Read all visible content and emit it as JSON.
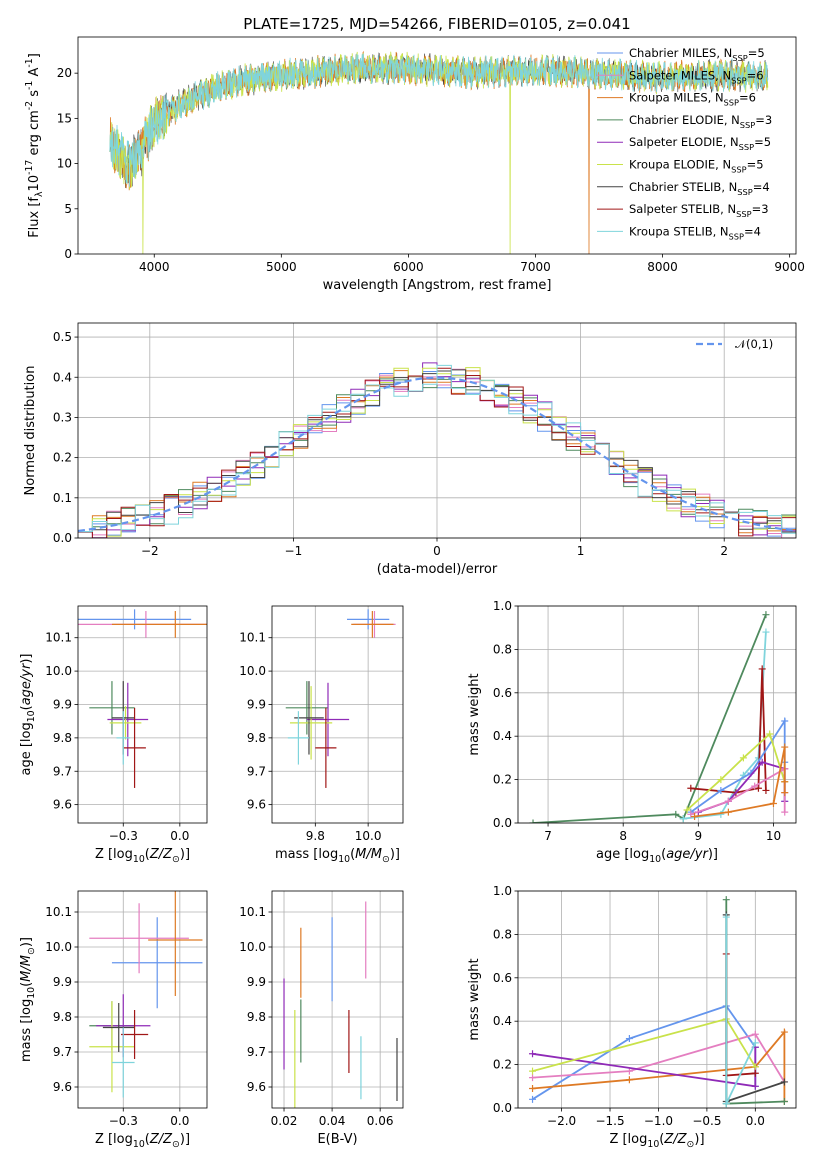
{
  "figure": {
    "title": "PLATE=1725, MJD=54266, FIBERID=0105, z=0.041"
  },
  "model_labels": {
    "chabrier_miles": "Chabrier MILES, N$_{SSP}$=5",
    "salpeter_miles": "Salpeter MILES, N$_{SSP}$=6",
    "kroupa_miles": "Kroupa MILES, N$_{SSP}$=6",
    "chabrier_elodie": "Chabrier ELODIE, N$_{SSP}$=3",
    "salpeter_elodie": "Salpeter ELODIE, N$_{SSP}$=5",
    "kroupa_elodie": "Kroupa ELODIE, N$_{SSP}$=5",
    "chabrier_stelib": "Chabrier STELIB, N$_{SSP}$=4",
    "salpeter_stelib": "Salpeter STELIB, N$_{SSP}$=3",
    "kroupa_stelib": "Kroupa STELIB, N$_{SSP}$=4"
  },
  "colors": {
    "chabrier_miles": "#6495ed",
    "salpeter_miles": "#e47ec0",
    "kroupa_miles": "#de7a25",
    "chabrier_elodie": "#4f8a5e",
    "salpeter_elodie": "#8f2ab7",
    "kroupa_elodie": "#c9e24a",
    "chabrier_stelib": "#444444",
    "salpeter_stelib": "#a01717",
    "kroupa_stelib": "#7fd4dc",
    "normal": "#6495ed"
  },
  "chart_data": [
    {
      "id": "spectrum",
      "type": "line",
      "title": "PLATE=1725, MJD=54266, FIBERID=0105, z=0.041",
      "xlabel": "wavelength [Angstrom, rest frame]",
      "ylabel": "Flux [f$_\\lambda$10$^{-17}$ erg cm$^{-2}$ s$^{-1}$ A$^{-1}$]",
      "xlim": [
        3400,
        9050
      ],
      "ylim": [
        0,
        24
      ],
      "xticks": [
        4000,
        5000,
        6000,
        7000,
        8000,
        9000
      ],
      "yticks": [
        0,
        5,
        10,
        15,
        20
      ],
      "legend": "right",
      "data_range": [
        3650,
        8830
      ],
      "series": [
        {
          "key": "chabrier_stelib",
          "name": "Chabrier STELIB, N$_{SSP}$=4"
        },
        {
          "key": "kroupa_miles",
          "name": "Kroupa MILES, N$_{SSP}$=6",
          "drops": [
            [
              7420,
              0
            ]
          ]
        },
        {
          "key": "kroupa_elodie",
          "name": "Kroupa ELODIE, N$_{SSP}$=5",
          "drops": [
            [
              3910,
              0
            ],
            [
              6800,
              0
            ]
          ]
        },
        {
          "key": "kroupa_stelib",
          "name": "Kroupa STELIB, N$_{SSP}$=4"
        }
      ],
      "continuum": [
        [
          3650,
          12.5
        ],
        [
          3800,
          9.5
        ],
        [
          3900,
          11.5
        ],
        [
          4000,
          14.5
        ],
        [
          4200,
          16.5
        ],
        [
          4500,
          18.5
        ],
        [
          4800,
          19.5
        ],
        [
          5200,
          20
        ],
        [
          5600,
          20.5
        ],
        [
          6000,
          20.5
        ],
        [
          6500,
          20
        ],
        [
          7000,
          20.3
        ],
        [
          7500,
          20
        ],
        [
          8000,
          19.5
        ],
        [
          8500,
          19.8
        ],
        [
          8830,
          19.6
        ]
      ]
    },
    {
      "id": "residuals",
      "type": "bar",
      "xlabel": "(data-model)/error",
      "ylabel": "Normed distribution",
      "xlim": [
        -2.5,
        2.5
      ],
      "ylim": [
        0,
        0.535
      ],
      "xticks": [
        -2,
        -1,
        0,
        1,
        2
      ],
      "yticks": [
        0.0,
        0.1,
        0.2,
        0.3,
        0.4,
        0.5
      ],
      "grid": true,
      "legend": "top-right",
      "legend_label": "$\\mathcal{N}(0,1)$",
      "series": [
        {
          "key": "normal",
          "name": "$\\mathcal{N}(0,1)$",
          "values": "gaussian(0,1)"
        }
      ],
      "hist_bins": [
        -2.5,
        2.5,
        0.1
      ]
    },
    {
      "id": "age_vs_Z",
      "type": "scatter",
      "xlabel": "Z [log$_{10}$($Z/Z_\\odot$)]",
      "ylabel": "age  [log$_{10}$($age/yr$)]",
      "xlim": [
        -0.45,
        0.12
      ],
      "ylim": [
        9.545,
        10.195
      ],
      "xticks": [
        -0.25,
        0.0
      ],
      "yticks": [
        9.6,
        9.7,
        9.8,
        9.9,
        10.0,
        10.1
      ],
      "grid": true,
      "errorbars": [
        {
          "key": "chabrier_miles",
          "x": -0.2,
          "xerr": 0.25,
          "y": 10.155,
          "yerr": 0.03
        },
        {
          "key": "salpeter_miles",
          "x": -0.15,
          "xerr": 0.35,
          "y": 10.14,
          "yerr": 0.04
        },
        {
          "key": "kroupa_miles",
          "x": -0.02,
          "xerr": 0.28,
          "y": 10.14,
          "yerr": 0.04
        },
        {
          "key": "chabrier_elodie",
          "x": -0.3,
          "xerr": 0.1,
          "y": 9.89,
          "yerr": 0.08
        },
        {
          "key": "salpeter_elodie",
          "x": -0.23,
          "xerr": 0.09,
          "y": 9.855,
          "yerr": 0.11
        },
        {
          "key": "kroupa_elodie",
          "x": -0.24,
          "xerr": 0.07,
          "y": 9.845,
          "yerr": 0.05
        },
        {
          "key": "chabrier_stelib",
          "x": -0.25,
          "xerr": 0.05,
          "y": 9.86,
          "yerr": 0.11
        },
        {
          "key": "salpeter_stelib",
          "x": -0.2,
          "xerr": 0.05,
          "y": 9.77,
          "yerr": 0.12
        },
        {
          "key": "kroupa_stelib",
          "x": -0.25,
          "xerr": 0.03,
          "y": 9.8,
          "yerr": 0.08
        }
      ]
    },
    {
      "id": "age_vs_mass",
      "type": "scatter",
      "xlabel": "mass [log$_{10}$($M/M_\\odot$)]",
      "ylabel": "",
      "xlim": [
        9.545,
        10.165
      ],
      "ylim": [
        9.545,
        10.195
      ],
      "xticks": [
        9.75,
        10.0
      ],
      "yticks": [
        9.6,
        9.7,
        9.8,
        9.9,
        10.0,
        10.1
      ],
      "grid": true,
      "errorbars": [
        {
          "key": "chabrier_miles",
          "x": 10.0,
          "xerr": 0.1,
          "y": 10.155,
          "yerr": 0.03
        },
        {
          "key": "salpeter_miles",
          "x": 10.03,
          "xerr": 0.1,
          "y": 10.14,
          "yerr": 0.04
        },
        {
          "key": "kroupa_miles",
          "x": 10.02,
          "xerr": 0.1,
          "y": 10.14,
          "yerr": 0.04
        },
        {
          "key": "chabrier_elodie",
          "x": 9.71,
          "xerr": 0.1,
          "y": 9.89,
          "yerr": 0.08
        },
        {
          "key": "salpeter_elodie",
          "x": 9.81,
          "xerr": 0.1,
          "y": 9.855,
          "yerr": 0.11
        },
        {
          "key": "kroupa_elodie",
          "x": 9.73,
          "xerr": 0.1,
          "y": 9.845,
          "yerr": 0.11
        },
        {
          "key": "chabrier_stelib",
          "x": 9.72,
          "xerr": 0.07,
          "y": 9.86,
          "yerr": 0.11
        },
        {
          "key": "salpeter_stelib",
          "x": 9.8,
          "xerr": 0.05,
          "y": 9.77,
          "yerr": 0.12
        },
        {
          "key": "kroupa_stelib",
          "x": 9.67,
          "xerr": 0.05,
          "y": 9.8,
          "yerr": 0.08
        }
      ]
    },
    {
      "id": "weight_vs_age",
      "type": "line",
      "xlabel": "age  [log$_{10}$($age/yr$)]",
      "ylabel": "mass weight",
      "xlim": [
        6.6,
        10.3
      ],
      "ylim": [
        0,
        1.0
      ],
      "xticks": [
        7,
        8,
        9,
        10
      ],
      "yticks": [
        0.0,
        0.2,
        0.4,
        0.6,
        0.8,
        1.0
      ],
      "grid": true,
      "series": [
        {
          "key": "chabrier_elodie",
          "x": [
            6.8,
            8.7,
            8.8,
            9.9
          ],
          "y": [
            0.0,
            0.04,
            0.02,
            0.96
          ]
        },
        {
          "key": "kroupa_stelib",
          "x": [
            8.8,
            9.3,
            9.6,
            9.8,
            9.9
          ],
          "y": [
            0.02,
            0.04,
            0.22,
            0.3,
            0.88
          ]
        },
        {
          "key": "salpeter_stelib",
          "x": [
            8.9,
            9.5,
            9.8,
            9.85,
            9.9
          ],
          "y": [
            0.16,
            0.14,
            0.16,
            0.71,
            0.15
          ]
        },
        {
          "key": "chabrier_miles",
          "x": [
            8.9,
            9.3,
            9.7,
            10.15,
            10.15,
            10.15
          ],
          "y": [
            0.05,
            0.15,
            0.23,
            0.47,
            0.28,
            0.1
          ]
        },
        {
          "key": "salpeter_elodie",
          "x": [
            9.0,
            9.4,
            9.85,
            10.15,
            10.15
          ],
          "y": [
            0.05,
            0.1,
            0.28,
            0.25,
            0.1
          ]
        },
        {
          "key": "kroupa_elodie",
          "x": [
            8.85,
            9.3,
            9.6,
            9.95,
            10.15
          ],
          "y": [
            0.06,
            0.2,
            0.3,
            0.41,
            0.19
          ]
        },
        {
          "key": "salpeter_miles",
          "x": [
            8.9,
            9.4,
            9.75,
            10.15,
            10.15,
            10.15
          ],
          "y": [
            0.04,
            0.1,
            0.17,
            0.25,
            0.14,
            0.05
          ]
        },
        {
          "key": "kroupa_miles",
          "x": [
            8.95,
            9.4,
            10.0,
            10.15,
            10.15,
            10.15
          ],
          "y": [
            0.03,
            0.05,
            0.09,
            0.35,
            0.19,
            0.14
          ]
        }
      ]
    },
    {
      "id": "mass_vs_Z",
      "type": "scatter",
      "xlabel": "Z [log$_{10}$($Z/Z_\\odot$)]",
      "ylabel": "mass [log$_{10}$($M/M_\\odot$)]",
      "xlim": [
        -0.45,
        0.12
      ],
      "ylim": [
        9.54,
        10.16
      ],
      "xticks": [
        -0.25,
        0.0
      ],
      "yticks": [
        9.6,
        9.7,
        9.8,
        9.9,
        10.0,
        10.1
      ],
      "grid": true,
      "errorbars": [
        {
          "key": "chabrier_miles",
          "x": -0.1,
          "xerr": 0.2,
          "y": 9.955,
          "yerr": 0.13
        },
        {
          "key": "salpeter_miles",
          "x": -0.18,
          "xerr": 0.22,
          "y": 10.025,
          "yerr": 0.1
        },
        {
          "key": "kroupa_miles",
          "x": -0.02,
          "xerr": 0.12,
          "y": 10.02,
          "yerr": 0.16
        },
        {
          "key": "chabrier_elodie",
          "x": -0.3,
          "xerr": 0.1,
          "y": 9.775,
          "yerr": 0.07
        },
        {
          "key": "salpeter_elodie",
          "x": -0.25,
          "xerr": 0.12,
          "y": 9.775,
          "yerr": 0.09
        },
        {
          "key": "kroupa_elodie",
          "x": -0.3,
          "xerr": 0.1,
          "y": 9.715,
          "yerr": 0.13
        },
        {
          "key": "chabrier_stelib",
          "x": -0.27,
          "xerr": 0.07,
          "y": 9.77,
          "yerr": 0.07
        },
        {
          "key": "salpeter_stelib",
          "x": -0.2,
          "xerr": 0.06,
          "y": 9.75,
          "yerr": 0.07
        },
        {
          "key": "kroupa_stelib",
          "x": -0.25,
          "xerr": 0.05,
          "y": 9.67,
          "yerr": 0.1
        }
      ]
    },
    {
      "id": "mass_vs_ebv",
      "type": "scatter",
      "xlabel": "E(B-V)",
      "ylabel": "",
      "xlim": [
        0.015,
        0.0695
      ],
      "ylim": [
        9.54,
        10.16
      ],
      "xticks": [
        0.02,
        0.04,
        0.06
      ],
      "yticks": [
        9.6,
        9.7,
        9.8,
        9.9,
        10.0,
        10.1
      ],
      "grid": true,
      "errorbars": [
        {
          "key": "chabrier_miles",
          "x": 0.04,
          "xerr": 0.0,
          "y": 9.965,
          "yerr": 0.12
        },
        {
          "key": "salpeter_miles",
          "x": 0.054,
          "xerr": 0.0,
          "y": 10.02,
          "yerr": 0.11
        },
        {
          "key": "kroupa_miles",
          "x": 0.027,
          "xerr": 0.0,
          "y": 9.955,
          "yerr": 0.1
        },
        {
          "key": "chabrier_elodie",
          "x": 0.027,
          "xerr": 0.0,
          "y": 9.76,
          "yerr": 0.09
        },
        {
          "key": "salpeter_elodie",
          "x": 0.02,
          "xerr": 0.0,
          "y": 9.78,
          "yerr": 0.13
        },
        {
          "key": "kroupa_elodie",
          "x": 0.0245,
          "xerr": 0.0,
          "y": 9.68,
          "yerr": 0.14
        },
        {
          "key": "chabrier_stelib",
          "x": 0.067,
          "xerr": 0.0,
          "y": 9.65,
          "yerr": 0.09
        },
        {
          "key": "salpeter_stelib",
          "x": 0.047,
          "xerr": 0.0,
          "y": 9.73,
          "yerr": 0.09
        },
        {
          "key": "kroupa_stelib",
          "x": 0.052,
          "xerr": 0.0,
          "y": 9.655,
          "yerr": 0.09
        }
      ]
    },
    {
      "id": "weight_vs_Z",
      "type": "line",
      "xlabel": "Z [log$_{10}$($Z/Z_\\odot$)]",
      "ylabel": "mass weight",
      "xlim": [
        -2.45,
        0.42
      ],
      "ylim": [
        0,
        1.0
      ],
      "xticks": [
        -2.0,
        -1.5,
        -1.0,
        -0.5,
        0.0
      ],
      "yticks": [
        0.0,
        0.2,
        0.4,
        0.6,
        0.8,
        1.0
      ],
      "grid": true,
      "series": [
        {
          "key": "chabrier_miles",
          "x": [
            -2.3,
            -1.3,
            -0.3,
            0.0,
            0.0
          ],
          "y": [
            0.04,
            0.32,
            0.47,
            0.28,
            0.1
          ]
        },
        {
          "key": "salpeter_miles",
          "x": [
            -2.3,
            -1.3,
            0.0,
            0.3
          ],
          "y": [
            0.14,
            0.17,
            0.34,
            0.12
          ]
        },
        {
          "key": "kroupa_miles",
          "x": [
            -2.3,
            -1.3,
            0.0,
            0.3,
            0.3
          ],
          "y": [
            0.09,
            0.13,
            0.19,
            0.35,
            0.03
          ]
        },
        {
          "key": "chabrier_elodie",
          "x": [
            -0.3,
            -0.3,
            0.3
          ],
          "y": [
            0.96,
            0.02,
            0.03
          ]
        },
        {
          "key": "salpeter_elodie",
          "x": [
            -2.3,
            0.0,
            0.0
          ],
          "y": [
            0.25,
            0.1,
            0.28
          ]
        },
        {
          "key": "kroupa_elodie",
          "x": [
            -2.3,
            -0.3,
            0.0
          ],
          "y": [
            0.17,
            0.41,
            0.19
          ]
        },
        {
          "key": "chabrier_stelib",
          "x": [
            -0.3,
            -0.3,
            0.3
          ],
          "y": [
            0.89,
            0.03,
            0.12
          ]
        },
        {
          "key": "salpeter_stelib",
          "x": [
            -0.3,
            -0.3,
            0.0
          ],
          "y": [
            0.71,
            0.15,
            0.16
          ]
        },
        {
          "key": "kroupa_stelib",
          "x": [
            -0.3,
            -0.3,
            0.0
          ],
          "y": [
            0.88,
            0.02,
            0.3
          ]
        }
      ]
    }
  ]
}
